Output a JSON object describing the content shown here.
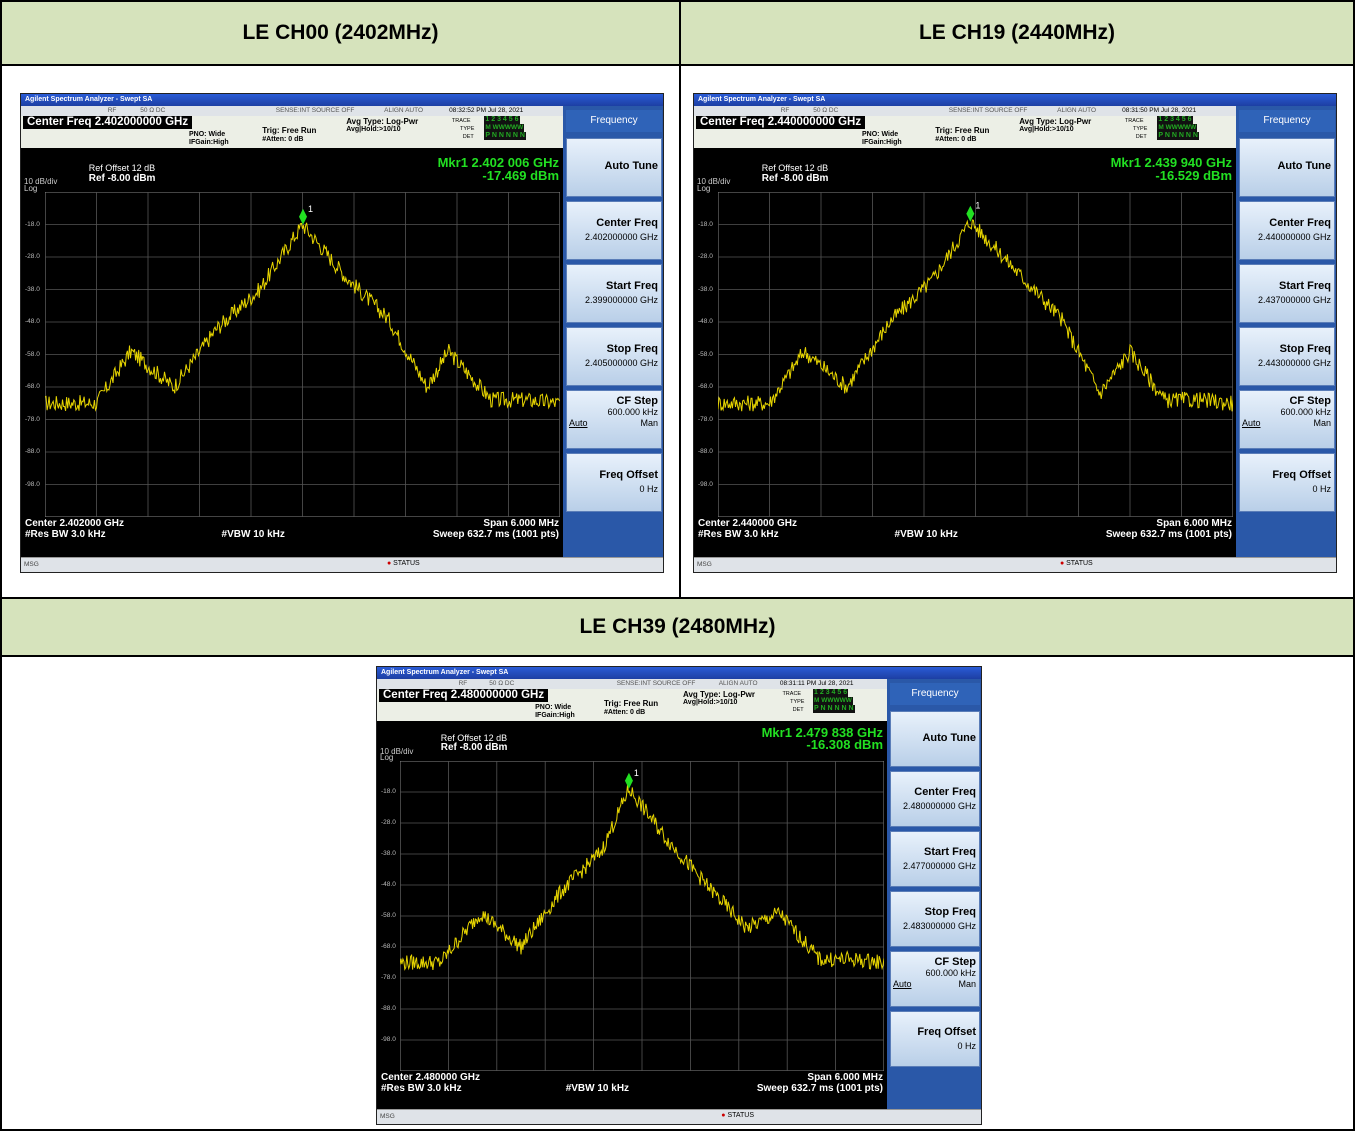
{
  "cells": [
    {
      "heading": "LE CH00 (2402MHz)",
      "analyzer": {
        "window_title": "Agilent Spectrum Analyzer - Swept SA",
        "top_strip": {
          "rf": "RF",
          "ohm": "50 Ω  DC",
          "sense": "SENSE:INT  SOURCE OFF",
          "align": "ALIGN AUTO",
          "time": "08:32:52 PM Jul 28, 2021"
        },
        "center_freq_label": "Center Freq 2.402000000 GHz",
        "pno": "PNO: Wide",
        "ifgain": "IFGain:High",
        "trig": "Trig: Free Run",
        "atten": "#Atten: 0 dB",
        "avg_type": "Avg Type: Log-Pwr",
        "avg_hold": "Avg|Hold:>10/10",
        "trace_lbl": "TRACE",
        "type_lbl": "TYPE",
        "det_lbl": "DET",
        "trace_val": "1 2 3 4 5 6",
        "type_val": "M WWWWW",
        "det_val": "P N N N N N",
        "ref_offset": "Ref Offset 12 dB",
        "ref_level": "Ref -8.00 dBm",
        "scale": "10 dB/div",
        "log": "Log",
        "marker_freq": "Mkr1 2.402 006 GHz",
        "marker_amp": "-17.469 dBm",
        "marker_label": "1",
        "y_ticks": [
          "-18.0",
          "-28.0",
          "-38.0",
          "-48.0",
          "-58.0",
          "-68.0",
          "-78.0",
          "-88.0",
          "-98.0"
        ],
        "center": "Center 2.402000 GHz",
        "res_bw": "#Res BW 3.0 kHz",
        "vbw": "#VBW 10 kHz",
        "span": "Span 6.000 MHz",
        "sweep": "Sweep  632.7 ms (1001 pts)",
        "msg": "MSG",
        "status": "STATUS",
        "softkeys": {
          "header": "Frequency",
          "auto_tune": "Auto Tune",
          "center_freq": "Center Freq",
          "center_freq_val": "2.402000000 GHz",
          "start_freq": "Start Freq",
          "start_freq_val": "2.399000000 GHz",
          "stop_freq": "Stop Freq",
          "stop_freq_val": "2.405000000 GHz",
          "cf_step": "CF Step",
          "cf_step_val": "600.000 kHz",
          "cf_auto": "Auto",
          "cf_man": "Man",
          "freq_offset": "Freq Offset",
          "freq_offset_val": "0 Hz"
        }
      }
    },
    {
      "heading": "LE CH19 (2440MHz)",
      "analyzer": {
        "window_title": "Agilent Spectrum Analyzer - Swept SA",
        "top_strip": {
          "rf": "RF",
          "ohm": "50 Ω  DC",
          "sense": "SENSE:INT  SOURCE OFF",
          "align": "ALIGN AUTO",
          "time": "08:31:50 PM Jul 28, 2021"
        },
        "center_freq_label": "Center Freq 2.440000000 GHz",
        "pno": "PNO: Wide",
        "ifgain": "IFGain:High",
        "trig": "Trig: Free Run",
        "atten": "#Atten: 0 dB",
        "avg_type": "Avg Type: Log-Pwr",
        "avg_hold": "Avg|Hold:>10/10",
        "trace_lbl": "TRACE",
        "type_lbl": "TYPE",
        "det_lbl": "DET",
        "trace_val": "1 2 3 4 5 6",
        "type_val": "M WWWWW",
        "det_val": "P N N N N N",
        "ref_offset": "Ref Offset 12 dB",
        "ref_level": "Ref -8.00 dBm",
        "scale": "10 dB/div",
        "log": "Log",
        "marker_freq": "Mkr1 2.439 940 GHz",
        "marker_amp": "-16.529 dBm",
        "marker_label": "1",
        "y_ticks": [
          "-18.0",
          "-28.0",
          "-38.0",
          "-48.0",
          "-58.0",
          "-68.0",
          "-78.0",
          "-88.0",
          "-98.0"
        ],
        "center": "Center 2.440000 GHz",
        "res_bw": "#Res BW 3.0 kHz",
        "vbw": "#VBW 10 kHz",
        "span": "Span 6.000 MHz",
        "sweep": "Sweep  632.7 ms (1001 pts)",
        "msg": "MSG",
        "status": "STATUS",
        "softkeys": {
          "header": "Frequency",
          "auto_tune": "Auto Tune",
          "center_freq": "Center Freq",
          "center_freq_val": "2.440000000 GHz",
          "start_freq": "Start Freq",
          "start_freq_val": "2.437000000 GHz",
          "stop_freq": "Stop Freq",
          "stop_freq_val": "2.443000000 GHz",
          "cf_step": "CF Step",
          "cf_step_val": "600.000 kHz",
          "cf_auto": "Auto",
          "cf_man": "Man",
          "freq_offset": "Freq Offset",
          "freq_offset_val": "0 Hz"
        }
      }
    },
    {
      "heading": "LE CH39 (2480MHz)",
      "analyzer": {
        "window_title": "Agilent Spectrum Analyzer - Swept SA",
        "top_strip": {
          "rf": "RF",
          "ohm": "50 Ω  DC",
          "sense": "SENSE:INT  SOURCE OFF",
          "align": "ALIGN AUTO",
          "time": "08:31:11 PM Jul 28, 2021"
        },
        "center_freq_label": "Center Freq 2.480000000 GHz",
        "pno": "PNO: Wide",
        "ifgain": "IFGain:High",
        "trig": "Trig: Free Run",
        "atten": "#Atten: 0 dB",
        "avg_type": "Avg Type: Log-Pwr",
        "avg_hold": "Avg|Hold:>10/10",
        "trace_lbl": "TRACE",
        "type_lbl": "TYPE",
        "det_lbl": "DET",
        "trace_val": "1 2 3 4 5 6",
        "type_val": "M WWWWW",
        "det_val": "P N N N N N",
        "ref_offset": "Ref Offset 12 dB",
        "ref_level": "Ref -8.00 dBm",
        "scale": "10 dB/div",
        "log": "Log",
        "marker_freq": "Mkr1 2.479 838 GHz",
        "marker_amp": "-16.308 dBm",
        "marker_label": "1",
        "y_ticks": [
          "-18.0",
          "-28.0",
          "-38.0",
          "-48.0",
          "-58.0",
          "-68.0",
          "-78.0",
          "-88.0",
          "-98.0"
        ],
        "center": "Center 2.480000 GHz",
        "res_bw": "#Res BW 3.0 kHz",
        "vbw": "#VBW 10 kHz",
        "span": "Span 6.000 MHz",
        "sweep": "Sweep  632.7 ms (1001 pts)",
        "msg": "MSG",
        "status": "STATUS",
        "softkeys": {
          "header": "Frequency",
          "auto_tune": "Auto Tune",
          "center_freq": "Center Freq",
          "center_freq_val": "2.480000000 GHz",
          "start_freq": "Start Freq",
          "start_freq_val": "2.477000000 GHz",
          "stop_freq": "Stop Freq",
          "stop_freq_val": "2.483000000 GHz",
          "cf_step": "CF Step",
          "cf_step_val": "600.000 kHz",
          "cf_auto": "Auto",
          "cf_man": "Man",
          "freq_offset": "Freq Offset",
          "freq_offset_val": "0 Hz"
        }
      }
    }
  ],
  "chart_data": [
    {
      "type": "line",
      "title": "",
      "xlabel": "",
      "ylabel": "",
      "xlim": [
        2.399,
        2.405
      ],
      "ylim": [
        -108,
        -8
      ],
      "x_unit": "GHz",
      "y_unit": "dBm",
      "series": [
        {
          "x": [
            2.399,
            2.3996,
            2.4,
            2.4005,
            2.401,
            2.4015,
            2.402,
            2.4025,
            2.403,
            2.40345,
            2.4037,
            2.4042,
            2.4046,
            2.405
          ],
          "y": [
            -73,
            -73,
            -57,
            -68,
            -50,
            -38,
            -18,
            -34,
            -47,
            -68,
            -57,
            -72,
            -72,
            -73
          ]
        }
      ],
      "marker": {
        "x": 2.402006,
        "y": -17.469
      }
    },
    {
      "type": "line",
      "title": "",
      "xlabel": "",
      "ylabel": "",
      "xlim": [
        2.437,
        2.443
      ],
      "ylim": [
        -108,
        -8
      ],
      "x_unit": "GHz",
      "y_unit": "dBm",
      "series": [
        {
          "x": [
            2.437,
            2.4376,
            2.438,
            2.4385,
            2.439,
            2.4395,
            2.43994,
            2.4405,
            2.441,
            2.44145,
            2.4418,
            2.4422,
            2.4426,
            2.443
          ],
          "y": [
            -73,
            -73,
            -57,
            -68,
            -48,
            -35,
            -17,
            -33,
            -47,
            -70,
            -57,
            -72,
            -72,
            -73
          ]
        }
      ],
      "marker": {
        "x": 2.43994,
        "y": -16.529
      }
    },
    {
      "type": "line",
      "title": "",
      "xlabel": "",
      "ylabel": "",
      "xlim": [
        2.477,
        2.483
      ],
      "ylim": [
        -108,
        -8
      ],
      "x_unit": "GHz",
      "y_unit": "dBm",
      "series": [
        {
          "x": [
            2.477,
            2.4775,
            2.478,
            2.4785,
            2.479,
            2.4795,
            2.479838,
            2.4803,
            2.4808,
            2.4813,
            2.4817,
            2.4822,
            2.4826,
            2.483
          ],
          "y": [
            -73,
            -73,
            -57,
            -68,
            -50,
            -37,
            -17,
            -33,
            -48,
            -62,
            -57,
            -72,
            -72,
            -73
          ]
        }
      ],
      "marker": {
        "x": 2.479838,
        "y": -16.308
      }
    }
  ]
}
